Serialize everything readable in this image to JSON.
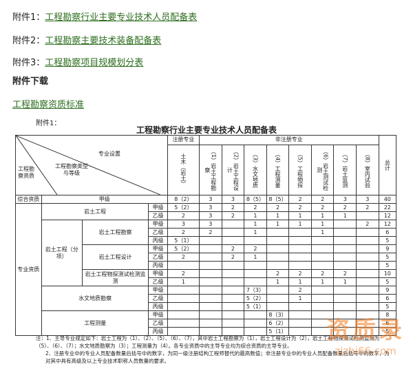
{
  "links": [
    {
      "prefix": "附件1：",
      "text": "工程勘察行业主要专业技术人员配备表"
    },
    {
      "prefix": "附件2：",
      "text": "工程勘察主要技术装备配备表"
    },
    {
      "prefix": "附件3：",
      "text": "工程勘察项目规模划分表"
    }
  ],
  "download_heading": "附件下载",
  "download_link": "工程勘察资质标准",
  "table": {
    "caption": "附件1：",
    "title": "工程勘察行业主要专业技术人员配备表",
    "header": {
      "diagonal_top": "专业设置",
      "diagonal_qual": "工程勘察资质",
      "diagonal_type": "工程勘察类型与等级",
      "registered": "注册专业",
      "non_registered": "非注册专业",
      "total": "总计",
      "columns": [
        "土木（岩土）",
        "（1）岩土工程勘察",
        "（2）岩土工程设计",
        "（3）水文地质",
        "（4）工程测量",
        "（5）工程物探",
        "（6）岩土测试检测",
        "（7）岩土监测",
        "（8）室内试验"
      ]
    },
    "labels": {
      "comprehensive": "综合资质",
      "professional": "专业资质",
      "geotech": "岩土工程",
      "geotech_sub": "岩土工程（分项）",
      "survey": "岩土工程勘察",
      "design": "岩土工程设计",
      "testing": "岩土工程物探测试检测监测",
      "hydro": "水文地质勘察",
      "mapping": "工程测量"
    },
    "rows": [
      {
        "grade": "甲级",
        "values": [
          "8（2）",
          3,
          3,
          "8（5）",
          "8（5）",
          2,
          2,
          3,
          3
        ],
        "total": 40
      },
      {
        "grade": "甲级",
        "values": [
          "5（2）",
          3,
          2,
          2,
          2,
          2,
          2,
          2,
          2
        ],
        "total": 22
      },
      {
        "grade": "乙级",
        "values": [
          2,
          3,
          2,
          1,
          1,
          1,
          1,
          1,
          null
        ],
        "total": 12
      },
      {
        "grade": "甲级",
        "values": [
          3,
          3,
          null,
          1,
          1,
          1,
          1,
          null,
          2
        ],
        "total": 12
      },
      {
        "grade": "乙级",
        "values": [
          2,
          2,
          null,
          1,
          null,
          null,
          1,
          null,
          null
        ],
        "total": 6
      },
      {
        "grade": "丙级",
        "values": [
          "5（1）",
          null,
          null,
          null,
          null,
          null,
          null,
          null,
          null
        ],
        "total": 5
      },
      {
        "grade": "甲级",
        "values": [
          "5（2）",
          null,
          2,
          2,
          null,
          null,
          null,
          null,
          null
        ],
        "total": 9
      },
      {
        "grade": "乙级",
        "values": [
          2,
          null,
          2,
          1,
          null,
          null,
          null,
          null,
          null
        ],
        "total": 5
      },
      {
        "grade": "丙级",
        "values": [
          null,
          null,
          null,
          null,
          null,
          null,
          null,
          null,
          null
        ],
        "total": 5
      },
      {
        "grade": "甲级",
        "values": [
          2,
          null,
          null,
          null,
          2,
          2,
          2,
          2,
          null
        ],
        "total": 10
      },
      {
        "grade": "乙级",
        "values": [
          1,
          null,
          null,
          null,
          1,
          1,
          1,
          1,
          null
        ],
        "total": 5
      },
      {
        "grade": "甲级",
        "values": [
          null,
          null,
          null,
          "7（3）",
          null,
          2,
          null,
          null,
          null
        ],
        "total": 9
      },
      {
        "grade": "乙级",
        "values": [
          null,
          null,
          null,
          "5（2）",
          null,
          1,
          null,
          null,
          null
        ],
        "total": 6
      },
      {
        "grade": "丙级",
        "values": [
          null,
          null,
          null,
          "5（1）",
          null,
          null,
          null,
          null,
          null
        ],
        "total": 5
      },
      {
        "grade": "甲级",
        "values": [
          null,
          null,
          null,
          null,
          "8（3）",
          null,
          null,
          null,
          null
        ],
        "total": 8
      },
      {
        "grade": "乙级",
        "values": [
          null,
          null,
          null,
          null,
          "6（2）",
          null,
          null,
          null,
          null
        ],
        "total": 6
      },
      {
        "grade": "丙级",
        "values": [
          null,
          null,
          null,
          null,
          "5（1）",
          null,
          null,
          null,
          null
        ],
        "total": 5
      }
    ],
    "notes": [
      "注：1、主导专业规定如下：岩土工程为（1）、（2）、（5）、（6）、（7），其中岩土工程勘察为（1），岩土工程设计为（2），岩土工程物探测试检测监测为（5）、（6）、（7）；水文地质勘察为（3）；工程测量为（4）。各专业资质中的主导专业均为综合资质的主导专业。",
      "2、注册专业中的专业人员配备数量后括号中的数字，为同一级注册结构工程师替代的最高数值；非注册专业中的专业人员配备数量后括号中的数字，为对其中具有高级及以上专业技术职称人员数量的要求。"
    ]
  },
  "watermark": {
    "title": "资质录",
    "url": "zizhi66.com"
  }
}
